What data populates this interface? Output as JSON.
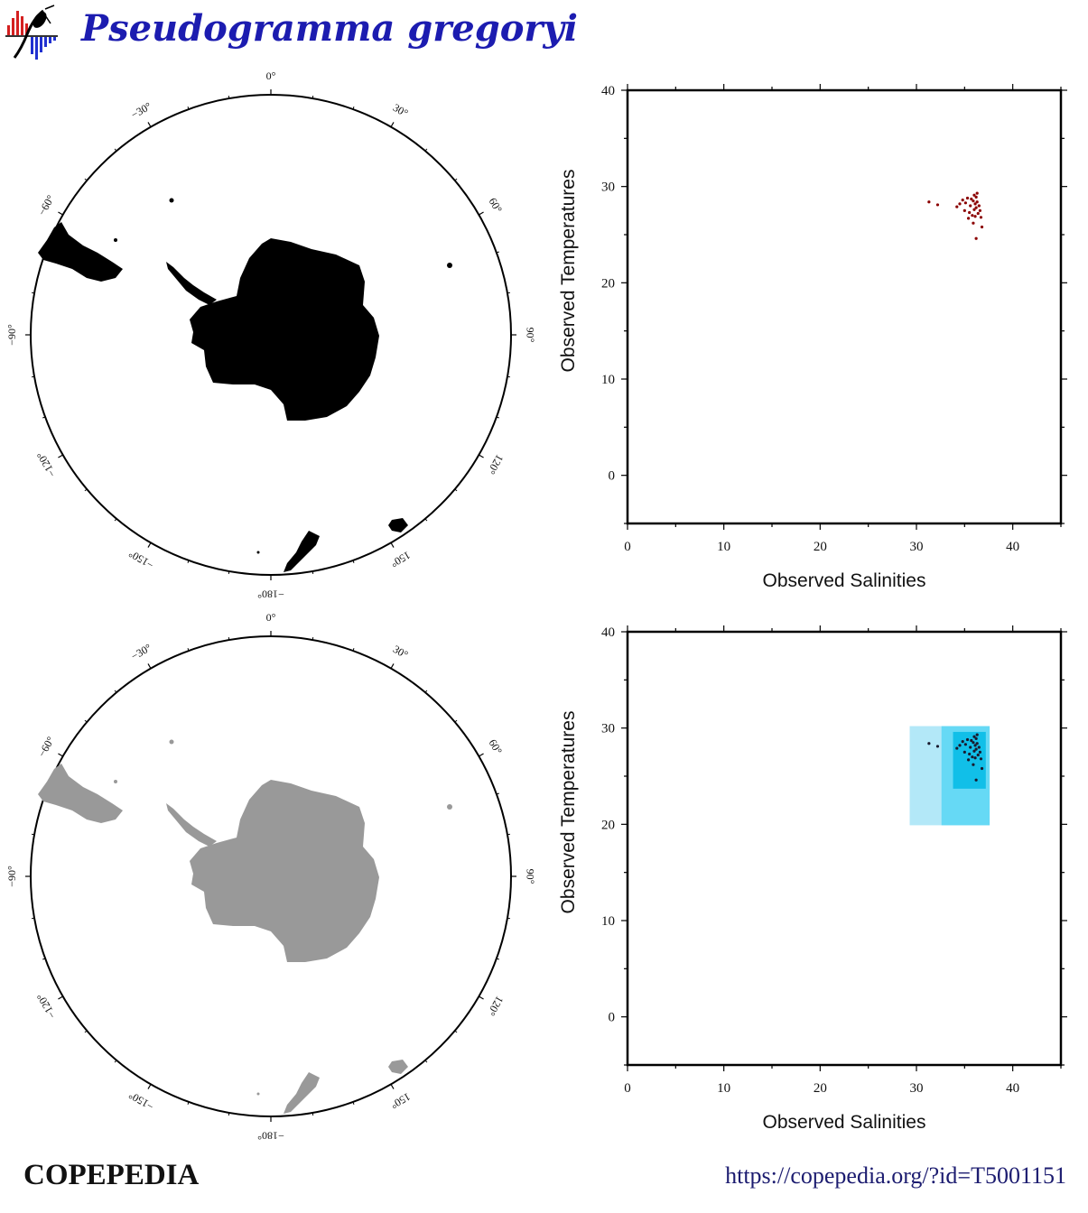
{
  "header": {
    "title": "Pseudogramma gregoryi",
    "logo_icon": "copepedia-logo-icon"
  },
  "footer": {
    "brand": "COPEPEDIA",
    "url": "https://copepedia.org/?id=T5001151"
  },
  "maps": [
    {
      "name": "observations-map",
      "projection": "south-polar-stereographic",
      "land_color": "#000000",
      "longitude_labels": [
        "0°",
        "30°",
        "60°",
        "90°",
        "120°",
        "150°",
        "−180°",
        "−150°",
        "−120°",
        "−90°",
        "−60°",
        "−30°"
      ]
    },
    {
      "name": "climatology-map",
      "projection": "south-polar-stereographic",
      "land_color": "#999999",
      "longitude_labels": [
        "0°",
        "30°",
        "60°",
        "90°",
        "120°",
        "150°",
        "−180°",
        "−150°",
        "−120°",
        "−90°",
        "−60°",
        "−30°"
      ]
    }
  ],
  "chart_data": [
    {
      "type": "scatter",
      "title": "",
      "xlabel": "Observed Salinities",
      "ylabel": "Observed Temperatures",
      "xlim": [
        0,
        45
      ],
      "ylim": [
        -5,
        40
      ],
      "xticks": [
        "0",
        "10",
        "20",
        "30",
        "40"
      ],
      "yticks": [
        "0",
        "10",
        "20",
        "30",
        "40"
      ],
      "point_color": "#8b0000",
      "series": [
        {
          "x": [
            31.3,
            32.2,
            34.2,
            34.5,
            34.8,
            35.0,
            35.1,
            35.3,
            35.5,
            35.6,
            35.7,
            35.8,
            35.9,
            36.0,
            36.0,
            36.1,
            36.1,
            36.2,
            36.2,
            36.3,
            36.3,
            36.4,
            36.5,
            36.6,
            36.7,
            36.8,
            35.4,
            35.9,
            36.2
          ],
          "y": [
            28.4,
            28.1,
            27.9,
            28.2,
            28.6,
            27.5,
            28.3,
            28.8,
            27.3,
            28.0,
            28.7,
            27.0,
            28.5,
            27.6,
            29.1,
            28.2,
            26.9,
            28.9,
            27.8,
            29.3,
            28.4,
            27.2,
            28.0,
            27.5,
            26.8,
            25.8,
            26.7,
            26.2,
            24.6
          ]
        }
      ]
    },
    {
      "type": "scatter",
      "title": "",
      "xlabel": "Observed Salinities",
      "ylabel": "Observed Temperatures",
      "xlim": [
        0,
        45
      ],
      "ylim": [
        -5,
        40
      ],
      "xticks": [
        "0",
        "10",
        "20",
        "30",
        "40"
      ],
      "yticks": [
        "0",
        "10",
        "20",
        "30",
        "40"
      ],
      "point_color": "#1a1a2e",
      "ranges": [
        {
          "x": [
            29.3,
            37.6
          ],
          "y": [
            19.9,
            30.2
          ],
          "color": "#b3e8f8"
        },
        {
          "x": [
            32.6,
            37.6
          ],
          "y": [
            19.9,
            30.2
          ],
          "color": "#66d9f5"
        },
        {
          "x": [
            33.8,
            37.2
          ],
          "y": [
            23.7,
            29.6
          ],
          "color": "#11bfe8"
        }
      ],
      "series": [
        {
          "x": [
            31.3,
            32.2,
            34.2,
            34.5,
            34.8,
            35.0,
            35.1,
            35.3,
            35.5,
            35.6,
            35.7,
            35.8,
            35.9,
            36.0,
            36.0,
            36.1,
            36.1,
            36.2,
            36.2,
            36.3,
            36.3,
            36.4,
            36.5,
            36.6,
            36.7,
            36.8,
            35.4,
            35.9,
            36.2
          ],
          "y": [
            28.4,
            28.1,
            27.9,
            28.2,
            28.6,
            27.5,
            28.3,
            28.8,
            27.3,
            28.0,
            28.7,
            27.0,
            28.5,
            27.6,
            29.1,
            28.2,
            26.9,
            28.9,
            27.8,
            29.3,
            28.4,
            27.2,
            28.0,
            27.5,
            26.8,
            25.8,
            26.7,
            26.2,
            24.6
          ]
        }
      ]
    }
  ]
}
